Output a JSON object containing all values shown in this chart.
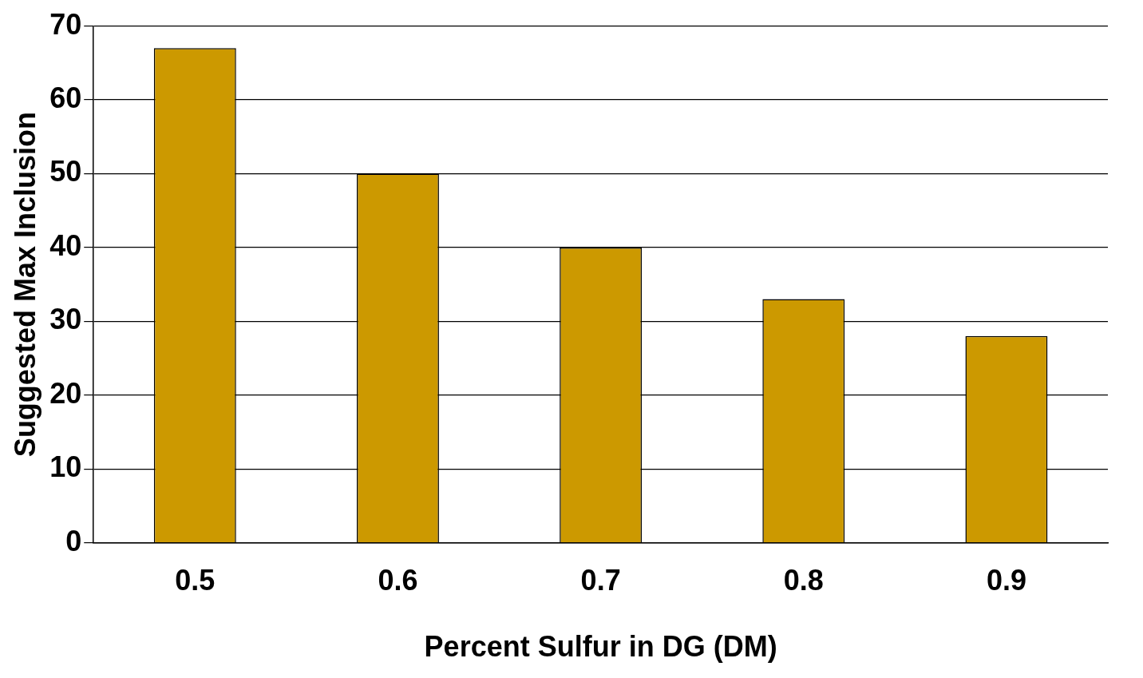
{
  "chart_data": {
    "type": "bar",
    "xlabel": "Percent Sulfur in DG (DM)",
    "ylabel": "Suggested Max Inclusion",
    "categories": [
      "0.5",
      "0.6",
      "0.7",
      "0.8",
      "0.9"
    ],
    "values": [
      67,
      50,
      40,
      33,
      28
    ],
    "color": "#cc9900",
    "ylim": [
      0,
      70
    ],
    "yticks": [
      0,
      10,
      20,
      30,
      40,
      50,
      60,
      70
    ],
    "grid": "y"
  }
}
